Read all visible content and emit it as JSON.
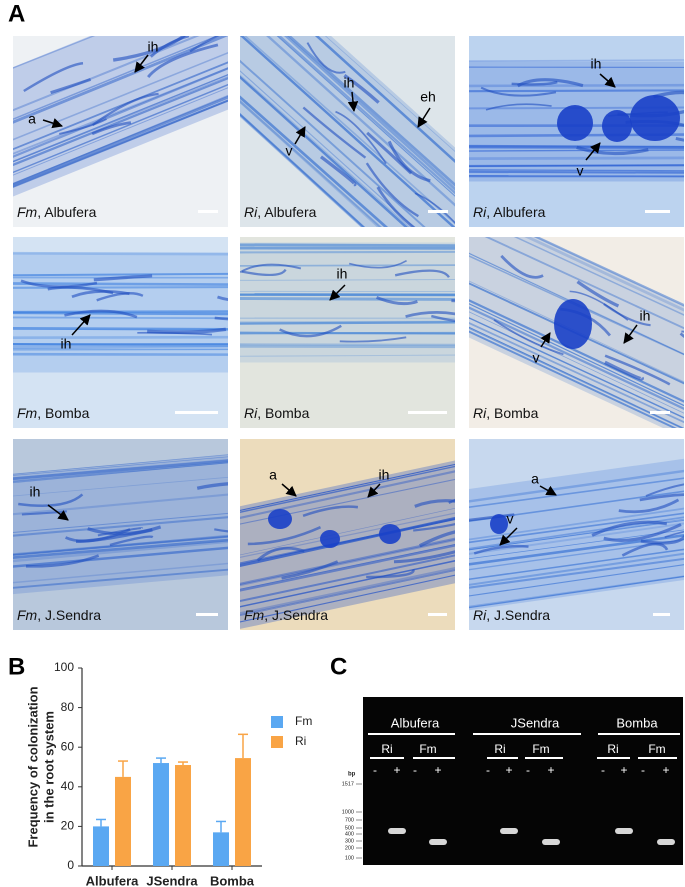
{
  "figure": {
    "panel_labels": [
      "A",
      "B",
      "C"
    ]
  },
  "panel_a": {
    "panels": [
      {
        "caption": [
          "Fm",
          ", Albufera"
        ],
        "annotations": [
          "ih",
          "a"
        ]
      },
      {
        "caption": [
          "Ri",
          ", Albufera"
        ],
        "annotations": [
          "ih",
          "eh",
          "v"
        ]
      },
      {
        "caption": [
          "Ri",
          ", Albufera"
        ],
        "annotations": [
          "ih",
          "v"
        ]
      },
      {
        "caption": [
          "Fm",
          ", Bomba"
        ],
        "annotations": [
          "ih"
        ]
      },
      {
        "caption": [
          "Ri",
          ", Bomba"
        ],
        "annotations": [
          "ih"
        ]
      },
      {
        "caption": [
          "Ri",
          ", Bomba"
        ],
        "annotations": [
          "ih",
          "v"
        ]
      },
      {
        "caption": [
          "Fm",
          ", J.Sendra"
        ],
        "annotations": [
          "ih"
        ]
      },
      {
        "caption": [
          "Fm",
          ", J.Sendra"
        ],
        "annotations": [
          "a",
          "ih"
        ]
      },
      {
        "caption": [
          "Ri",
          ", J.Sendra"
        ],
        "annotations": [
          "a",
          "v"
        ]
      }
    ]
  },
  "chart_data": {
    "type": "bar",
    "ylabel": [
      "Frequency of colonization",
      "in the root system"
    ],
    "categories": [
      "Albufera",
      "JSendra",
      "Bomba"
    ],
    "series": [
      {
        "name": "Fm",
        "color": "#5aa8f2",
        "values": [
          20,
          52,
          17
        ],
        "errors": [
          3.5,
          2.5,
          5.5
        ]
      },
      {
        "name": "Ri",
        "color": "#f9a445",
        "values": [
          45,
          51,
          54.5
        ],
        "errors": [
          8,
          1.5,
          12
        ]
      }
    ],
    "ylim": [
      0,
      100
    ],
    "yticks": [
      0,
      20,
      40,
      60,
      80,
      100
    ],
    "legend": "upper right"
  },
  "panel_c": {
    "groups": [
      {
        "name": "Albufera",
        "lanes": [
          "Ri",
          "Fm"
        ]
      },
      {
        "name": "JSendra",
        "lanes": [
          "Ri",
          "Fm"
        ]
      },
      {
        "name": "Bomba",
        "lanes": [
          "Ri",
          "Fm"
        ]
      }
    ],
    "signs": [
      "-",
      "+"
    ],
    "unit": "bp",
    "ladder": [
      1517,
      1000,
      700,
      500,
      400,
      300,
      200,
      100
    ]
  }
}
